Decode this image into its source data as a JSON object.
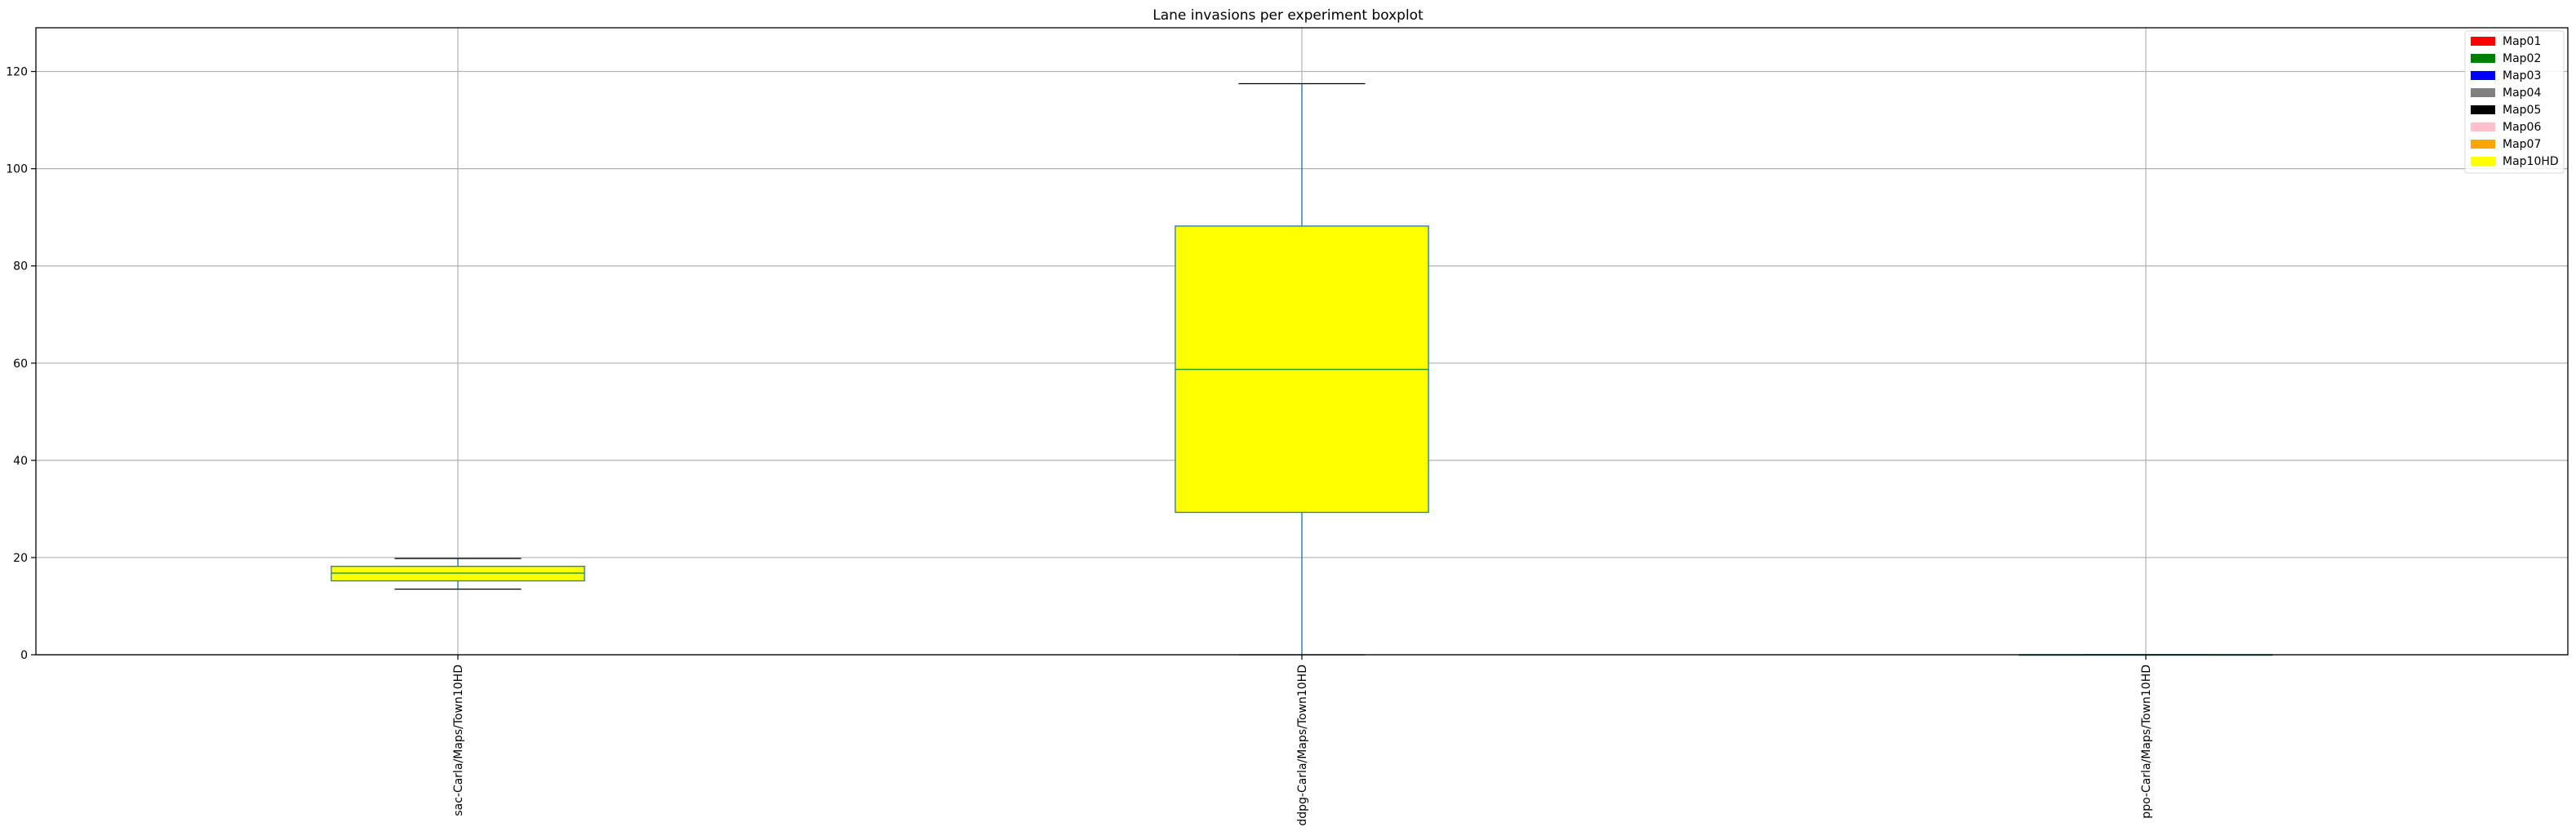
{
  "chart_data": {
    "type": "boxplot",
    "title": "Lane invasions per experiment boxplot",
    "xlabel": "",
    "ylabel": "",
    "ylim": [
      0,
      129
    ],
    "yticks": [
      0,
      20,
      40,
      60,
      80,
      100,
      120
    ],
    "grid": true,
    "legend_position": "top-right",
    "categories": [
      "sac-Carla/Maps/Town10HD",
      "ddpg-Carla/Maps/Town10HD",
      "ppo-Carla/Maps/Town10HD"
    ],
    "boxes": [
      {
        "category": "sac-Carla/Maps/Town10HD",
        "whisker_low": 13.5,
        "q1": 15.2,
        "median": 16.8,
        "q3": 18.2,
        "whisker_high": 19.8
      },
      {
        "category": "ddpg-Carla/Maps/Town10HD",
        "whisker_low": 0,
        "q1": 29.3,
        "median": 58.7,
        "q3": 88.2,
        "whisker_high": 117.5
      },
      {
        "category": "ppo-Carla/Maps/Town10HD",
        "whisker_low": 0,
        "q1": 0,
        "median": 0,
        "q3": 0,
        "whisker_high": 0
      }
    ],
    "box_fill": "#ffff00",
    "box_edge": "#1f77b4",
    "whisker_color": "#1f77b4",
    "median_color": "#2ca02c",
    "legend": [
      {
        "label": "Map01",
        "color": "#ff0000"
      },
      {
        "label": "Map02",
        "color": "#008000"
      },
      {
        "label": "Map03",
        "color": "#0000ff"
      },
      {
        "label": "Map04",
        "color": "#808080"
      },
      {
        "label": "Map05",
        "color": "#000000"
      },
      {
        "label": "Map06",
        "color": "#ffc0cb"
      },
      {
        "label": "Map07",
        "color": "#ffa500"
      },
      {
        "label": "Map10HD",
        "color": "#ffff00"
      }
    ]
  }
}
